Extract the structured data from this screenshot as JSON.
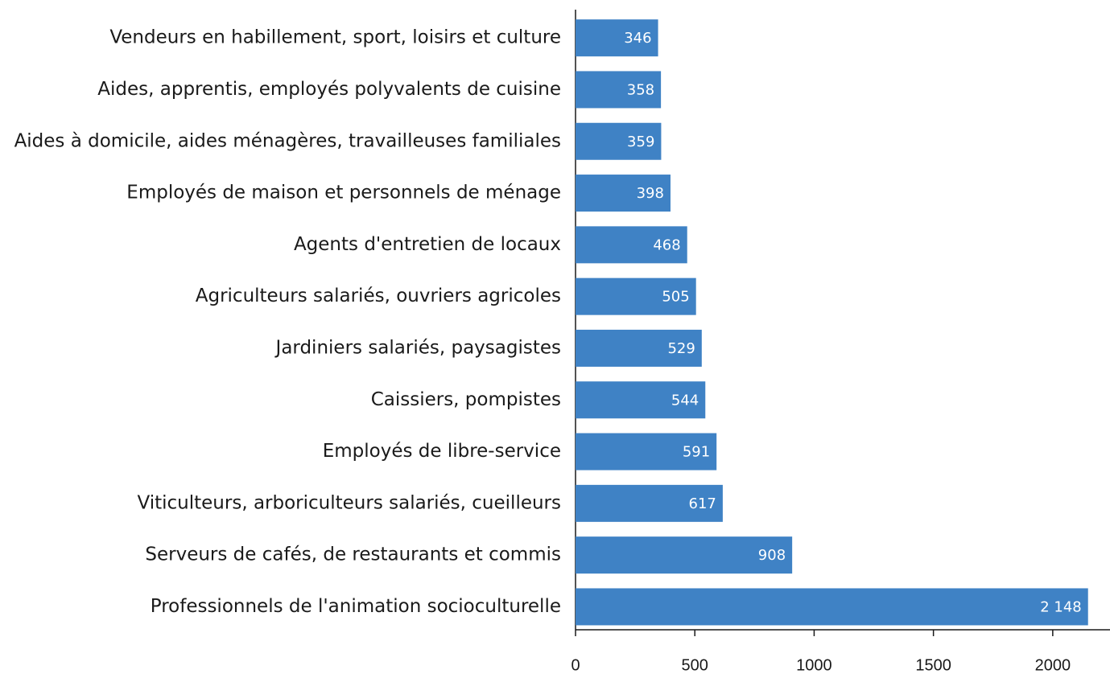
{
  "chart_data": {
    "type": "bar",
    "orientation": "horizontal",
    "categories": [
      "Vendeurs en habillement, sport, loisirs et culture",
      "Aides, apprentis, employés polyvalents de cuisine",
      "Aides à domicile, aides ménagères, travailleuses familiales",
      "Employés de maison et personnels de ménage",
      "Agents d'entretien de locaux",
      "Agriculteurs salariés, ouvriers agricoles",
      "Jardiniers salariés, paysagistes",
      "Caissiers, pompistes",
      "Employés de libre-service",
      "Viticulteurs, arboriculteurs salariés, cueilleurs",
      "Serveurs de cafés, de restaurants et commis",
      "Professionnels de l'animation socioculturelle"
    ],
    "values": [
      346,
      358,
      359,
      398,
      468,
      505,
      529,
      544,
      591,
      617,
      908,
      2148
    ],
    "value_labels": [
      "346",
      "358",
      "359",
      "398",
      "468",
      "505",
      "529",
      "544",
      "591",
      "617",
      "908",
      "2 148"
    ],
    "color": "#3f82c5",
    "xlim": [
      0,
      2240
    ],
    "xticks": [
      0,
      500,
      1000,
      1500,
      2000
    ],
    "grid": false
  }
}
